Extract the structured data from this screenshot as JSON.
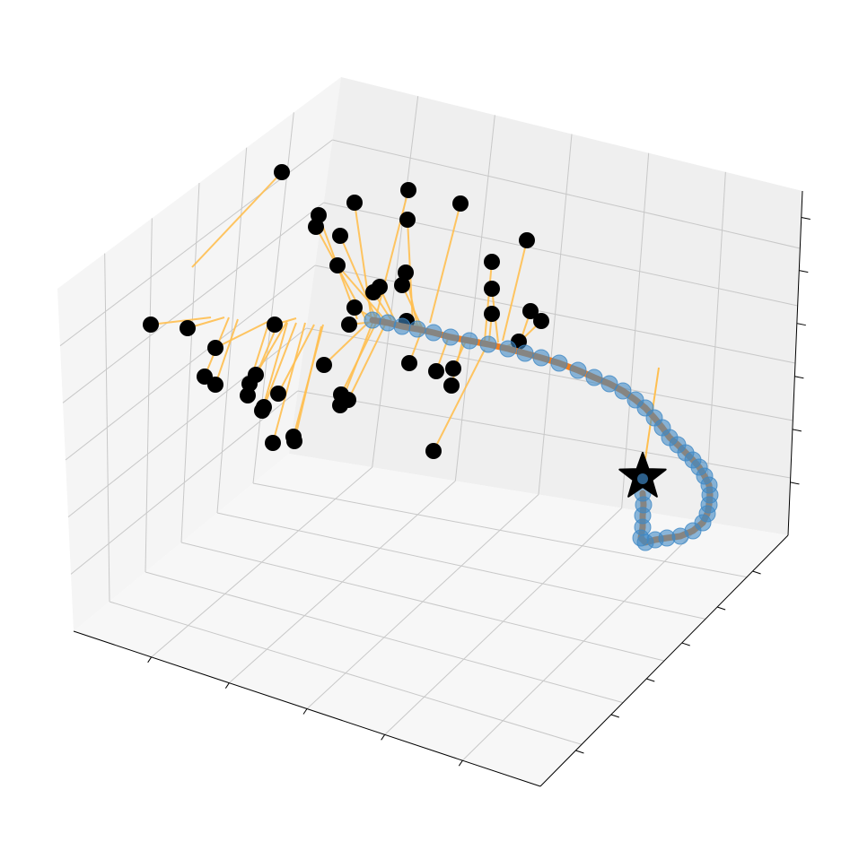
{
  "chart_data": {
    "type": "scatter",
    "projection": "3d",
    "title": "",
    "xlabel": "",
    "ylabel": "",
    "zlabel": "",
    "tick_labels_shown": false,
    "grid": true,
    "legend": "none",
    "colors": {
      "sample_points": "#000000",
      "connector_lines": "#ffbf50",
      "trajectory_line": "#f07f1f",
      "trajectory_points": "#3f88c5",
      "goal_marker": "#000000",
      "pane_left": "#f5f5f5",
      "pane_right": "#efefef",
      "pane_floor": "#f7f7f7",
      "grid": "#c8c8c8"
    },
    "series": [
      {
        "kind": "sample_points",
        "marker": "circle",
        "points": [
          [
            314,
            192
          ],
          [
            455,
            212
          ],
          [
            513,
            227
          ],
          [
            395,
            226
          ],
          [
            355,
            240
          ],
          [
            454,
            245
          ],
          [
            352,
            253
          ],
          [
            379,
            263
          ],
          [
            587,
            268
          ],
          [
            376,
            296
          ],
          [
            548,
            292
          ],
          [
            452,
            304
          ],
          [
            448,
            318
          ],
          [
            423,
            320
          ],
          [
            416,
            326
          ],
          [
            548,
            322
          ],
          [
            168,
            362
          ],
          [
            209,
            366
          ],
          [
            306,
            362
          ],
          [
            395,
            343
          ],
          [
            389,
            362
          ],
          [
            453,
            358
          ],
          [
            548,
            350
          ],
          [
            591,
            347
          ],
          [
            603,
            358
          ],
          [
            578,
            381
          ],
          [
            240,
            388
          ],
          [
            361,
            407
          ],
          [
            456,
            405
          ],
          [
            486,
            414
          ],
          [
            505,
            411
          ],
          [
            503,
            430
          ],
          [
            228,
            420
          ],
          [
            240,
            429
          ],
          [
            285,
            418
          ],
          [
            278,
            428
          ],
          [
            276,
            441
          ],
          [
            310,
            439
          ],
          [
            294,
            454
          ],
          [
            292,
            458
          ],
          [
            380,
            440
          ],
          [
            388,
            446
          ],
          [
            379,
            452
          ],
          [
            304,
            494
          ],
          [
            327,
            487
          ],
          [
            328,
            492
          ],
          [
            483,
            503
          ]
        ],
        "line_ends": [
          [
            214,
            298
          ],
          [
            418,
            357
          ],
          [
            479,
            360
          ],
          [
            414,
            357
          ],
          [
            398,
            356
          ],
          [
            460,
            362
          ],
          [
            408,
            357
          ],
          [
            420,
            358
          ],
          [
            560,
            380
          ],
          [
            430,
            358
          ],
          [
            540,
            380
          ],
          [
            465,
            363
          ],
          [
            470,
            365
          ],
          [
            440,
            358
          ],
          [
            436,
            357
          ],
          [
            555,
            382
          ],
          [
            235,
            354
          ],
          [
            250,
            354
          ],
          [
            330,
            355
          ],
          [
            420,
            357
          ],
          [
            425,
            358
          ],
          [
            470,
            364
          ],
          [
            545,
            380
          ],
          [
            580,
            380
          ],
          [
            575,
            385
          ],
          [
            565,
            386
          ],
          [
            300,
            358
          ],
          [
            410,
            360
          ],
          [
            470,
            368
          ],
          [
            500,
            375
          ],
          [
            520,
            378
          ],
          [
            515,
            382
          ],
          [
            255,
            354
          ],
          [
            265,
            356
          ],
          [
            320,
            358
          ],
          [
            300,
            358
          ],
          [
            310,
            360
          ],
          [
            350,
            362
          ],
          [
            330,
            360
          ],
          [
            320,
            360
          ],
          [
            420,
            358
          ],
          [
            430,
            360
          ],
          [
            415,
            360
          ],
          [
            340,
            360
          ],
          [
            360,
            362
          ],
          [
            358,
            364
          ],
          [
            540,
            390
          ]
        ]
      },
      {
        "kind": "connector_to_goal",
        "from": [
          716,
          532
        ],
        "to": [
          734,
          410
        ]
      },
      {
        "kind": "trajectory",
        "marker": "circle",
        "points": [
          [
            415,
            357
          ],
          [
            432,
            360
          ],
          [
            448,
            364
          ],
          [
            465,
            367
          ],
          [
            483,
            371
          ],
          [
            502,
            376
          ],
          [
            523,
            380
          ],
          [
            544,
            384
          ],
          [
            566,
            389
          ],
          [
            585,
            394
          ],
          [
            603,
            399
          ],
          [
            623,
            405
          ],
          [
            644,
            413
          ],
          [
            662,
            421
          ],
          [
            679,
            428
          ],
          [
            694,
            436
          ],
          [
            708,
            446
          ],
          [
            719,
            455
          ],
          [
            729,
            466
          ],
          [
            738,
            477
          ],
          [
            746,
            488
          ],
          [
            755,
            496
          ],
          [
            764,
            505
          ],
          [
            772,
            513
          ],
          [
            779,
            521
          ],
          [
            785,
            531
          ],
          [
            790,
            541
          ],
          [
            791,
            552
          ],
          [
            790,
            563
          ],
          [
            788,
            573
          ],
          [
            783,
            583
          ],
          [
            772,
            592
          ],
          [
            758,
            598
          ],
          [
            743,
            600
          ],
          [
            730,
            602
          ],
          [
            719,
            605
          ],
          [
            714,
            600
          ],
          [
            716,
            588
          ],
          [
            716,
            575
          ],
          [
            717,
            563
          ],
          [
            716,
            550
          ]
        ]
      },
      {
        "kind": "goal",
        "marker": "star",
        "point": [
          716,
          532
        ]
      }
    ]
  }
}
